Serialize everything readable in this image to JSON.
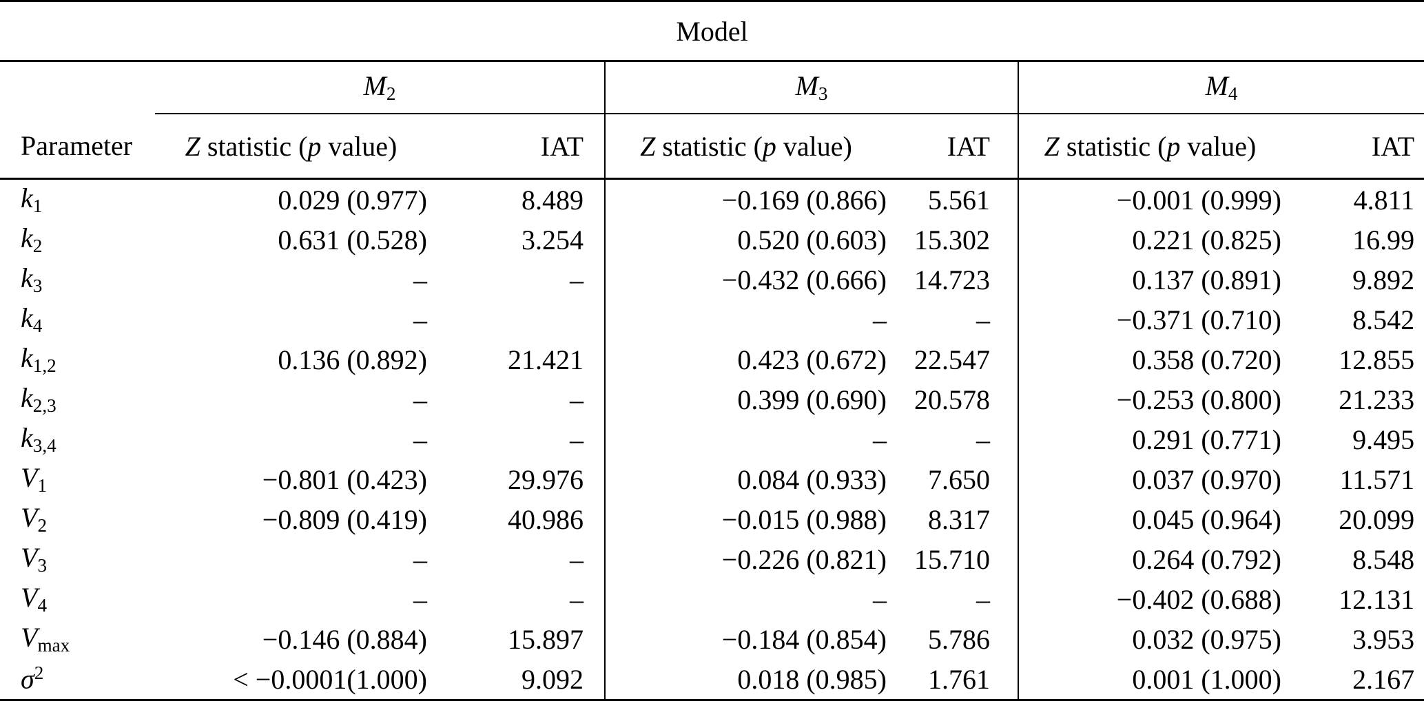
{
  "glyphs": {
    "hat": "ˆ"
  },
  "table": {
    "title": "Model",
    "param_header": "Parameter",
    "model_headers": [
      [
        {
          "t": "M",
          "i": true
        },
        {
          "t": "2",
          "sub": true
        }
      ],
      [
        {
          "t": "M",
          "i": true
        },
        {
          "t": "3",
          "sub": true
        }
      ],
      [
        {
          "t": "M",
          "i": true
        },
        {
          "t": "4",
          "sub": true
        }
      ]
    ],
    "z_header": [
      {
        "t": "Z",
        "i": true
      },
      {
        "t": " statistic ("
      },
      {
        "t": "p",
        "i": true
      },
      {
        "t": " value)"
      }
    ],
    "iat_header": "IAT",
    "rows": [
      {
        "param": [
          {
            "t": "k",
            "i": true
          },
          {
            "t": "1",
            "sub": true
          }
        ],
        "cells": [
          "0.029 (0.977)",
          "8.489",
          "−0.169 (0.866)",
          "5.561",
          "−0.001 (0.999)",
          "4.811"
        ]
      },
      {
        "param": [
          {
            "t": "k",
            "i": true
          },
          {
            "t": "2",
            "sub": true
          }
        ],
        "cells": [
          "0.631 (0.528)",
          "3.254",
          "0.520 (0.603)",
          "15.302",
          "0.221 (0.825)",
          "16.99"
        ]
      },
      {
        "param": [
          {
            "t": "k",
            "i": true
          },
          {
            "t": "3",
            "sub": true
          }
        ],
        "cells": [
          "–",
          "–",
          "−0.432 (0.666)",
          "14.723",
          "0.137 (0.891)",
          "9.892"
        ]
      },
      {
        "param": [
          {
            "t": "k",
            "i": true
          },
          {
            "t": "4",
            "sub": true
          }
        ],
        "cells": [
          "–",
          "",
          "–",
          "–",
          "−0.371 (0.710)",
          "8.542"
        ]
      },
      {
        "param": [
          {
            "t": "k",
            "i": true
          },
          {
            "t": "1,2",
            "sub": true
          }
        ],
        "cells": [
          "0.136 (0.892)",
          "21.421",
          "0.423 (0.672)",
          "22.547",
          "0.358 (0.720)",
          "12.855"
        ]
      },
      {
        "param": [
          {
            "t": "k",
            "i": true
          },
          {
            "t": "2,3",
            "sub": true
          }
        ],
        "cells": [
          "–",
          "–",
          "0.399 (0.690)",
          "20.578",
          "−0.253 (0.800)",
          "21.233"
        ]
      },
      {
        "param": [
          {
            "t": "k",
            "i": true
          },
          {
            "t": "3,4",
            "sub": true
          }
        ],
        "cells": [
          "–",
          "–",
          "–",
          "–",
          "0.291 (0.771)",
          "9.495"
        ]
      },
      {
        "param": [
          {
            "t": "V",
            "i": true,
            "hat": true
          },
          {
            "t": "1",
            "sub": true
          }
        ],
        "cells": [
          "−0.801 (0.423)",
          "29.976",
          "0.084 (0.933)",
          "7.650",
          "0.037 (0.970)",
          "11.571"
        ]
      },
      {
        "param": [
          {
            "t": "V",
            "i": true,
            "hat": true
          },
          {
            "t": "2",
            "sub": true
          }
        ],
        "cells": [
          "−0.809 (0.419)",
          "40.986",
          "−0.015 (0.988)",
          "8.317",
          "0.045 (0.964)",
          "20.099"
        ]
      },
      {
        "param": [
          {
            "t": "V",
            "i": true,
            "hat": true
          },
          {
            "t": "3",
            "sub": true
          }
        ],
        "cells": [
          "–",
          "–",
          "−0.226 (0.821)",
          "15.710",
          "0.264 (0.792)",
          "8.548"
        ]
      },
      {
        "param": [
          {
            "t": "V",
            "i": true,
            "hat": true
          },
          {
            "t": "4",
            "sub": true
          }
        ],
        "cells": [
          "–",
          "–",
          "–",
          "–",
          "−0.402 (0.688)",
          "12.131"
        ]
      },
      {
        "param": [
          {
            "t": "V",
            "i": true
          },
          {
            "t": "max",
            "sub": true
          }
        ],
        "cells": [
          "−0.146 (0.884)",
          "15.897",
          "−0.184 (0.854)",
          "5.786",
          "0.032 (0.975)",
          "3.953"
        ]
      },
      {
        "param": [
          {
            "t": "σ",
            "i": true
          },
          {
            "t": "2",
            "sup": true
          }
        ],
        "cells": [
          "< −0.0001(1.000)",
          "9.092",
          "0.018 (0.985)",
          "1.761",
          "0.001 (1.000)",
          "2.167"
        ]
      }
    ]
  }
}
